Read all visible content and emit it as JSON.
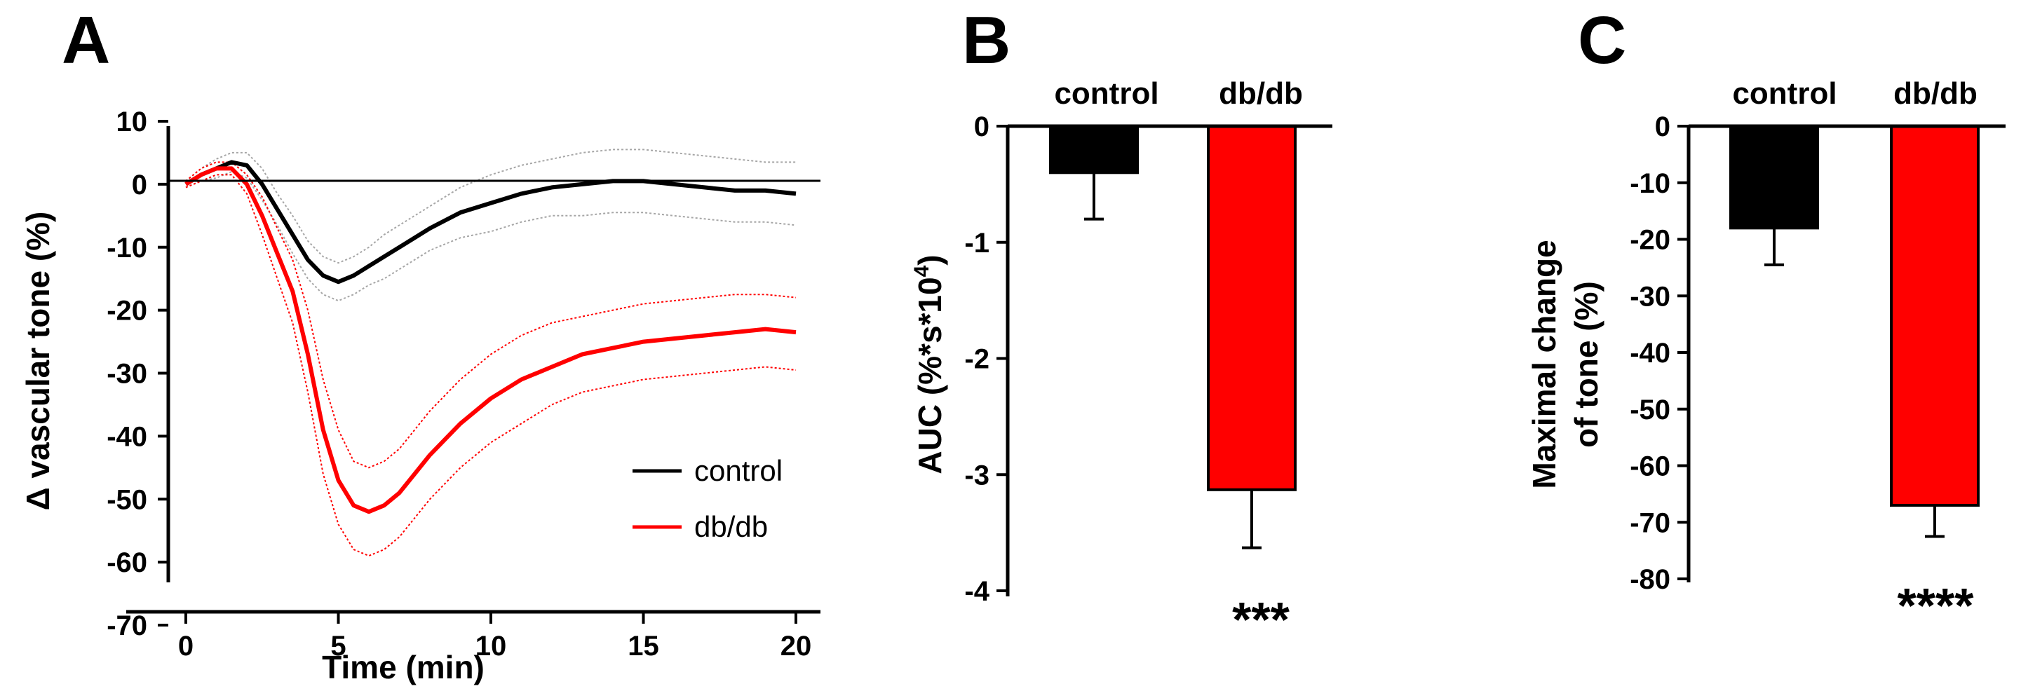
{
  "colors": {
    "control": "#000000",
    "dbdb": "#ff0000",
    "control_band": "#a6a6a6",
    "dbdb_band": "#ff0000"
  },
  "chart_data": [
    {
      "panel": "A",
      "type": "line",
      "title": "",
      "xlabel": "Time (min)",
      "ylabel": "Δ vascular tone (%)",
      "xlim": [
        -1,
        21
      ],
      "ylim": [
        -70,
        10
      ],
      "xticks": [
        0,
        5,
        10,
        15,
        20
      ],
      "yticks": [
        10,
        0,
        -10,
        -20,
        -30,
        -40,
        -50,
        -60,
        -70
      ],
      "x": [
        0,
        0.5,
        1,
        1.5,
        2,
        2.5,
        3,
        3.5,
        4,
        4.5,
        5,
        5.5,
        6,
        6.5,
        7,
        7.5,
        8,
        9,
        10,
        11,
        12,
        13,
        14,
        15,
        16,
        17,
        18,
        19,
        20
      ],
      "series": [
        {
          "name": "control",
          "mean": [
            0,
            1.5,
            2.5,
            3.5,
            3,
            0,
            -4,
            -8,
            -12,
            -14.5,
            -15.5,
            -14.5,
            -13,
            -11.5,
            -10,
            -8.5,
            -7,
            -4.5,
            -3,
            -1.5,
            -0.5,
            0,
            0.5,
            0.5,
            0,
            -0.5,
            -1,
            -1,
            -1.5
          ],
          "upper": [
            0.5,
            2.5,
            4,
            5,
            5,
            2.5,
            -1.5,
            -5,
            -9,
            -11.5,
            -12.5,
            -11.5,
            -10,
            -8,
            -6.5,
            -5,
            -3.5,
            -0.5,
            1.5,
            3,
            4,
            5,
            5.5,
            5.5,
            5,
            4.5,
            4,
            3.5,
            3.5
          ],
          "lower": [
            -0.5,
            0.5,
            1,
            2,
            1,
            -2.5,
            -6.5,
            -11,
            -15,
            -17.5,
            -18.5,
            -17.5,
            -16,
            -15,
            -13.5,
            -12,
            -10.5,
            -8.5,
            -7.5,
            -6,
            -5,
            -5,
            -4.5,
            -4.5,
            -5,
            -5.5,
            -6,
            -6,
            -6.5
          ]
        },
        {
          "name": "db/db",
          "mean": [
            0,
            1.5,
            2.5,
            2.5,
            0,
            -5,
            -11,
            -17,
            -27,
            -39,
            -47,
            -51,
            -52,
            -51,
            -49,
            -46,
            -43,
            -38,
            -34,
            -31,
            -29,
            -27,
            -26,
            -25,
            -24.5,
            -24,
            -23.5,
            -23,
            -23.5
          ],
          "upper": [
            0.5,
            2.5,
            3.5,
            3.5,
            1.5,
            -2,
            -7,
            -12,
            -20,
            -31,
            -39,
            -44,
            -45,
            -44,
            -42,
            -39,
            -36,
            -31,
            -27,
            -24,
            -22,
            -21,
            -20,
            -19,
            -18.5,
            -18,
            -17.5,
            -17.5,
            -18
          ],
          "lower": [
            -0.5,
            0.5,
            1.5,
            1.5,
            -1.5,
            -8,
            -15,
            -22,
            -33,
            -46,
            -54,
            -58,
            -59,
            -58,
            -56,
            -53,
            -50,
            -45,
            -41,
            -38,
            -35,
            -33,
            -32,
            -31,
            -30.5,
            -30,
            -29.5,
            -29,
            -29.5
          ]
        }
      ],
      "legend": [
        "control",
        "db/db"
      ],
      "legend_position": "lower-right"
    },
    {
      "panel": "B",
      "type": "bar",
      "categories": [
        "control",
        "db/db"
      ],
      "values": [
        -0.4,
        -3.13
      ],
      "errors": [
        0.4,
        0.5
      ],
      "ylabel": "AUC (%*s*10",
      "ylabel_sup": "4",
      "ylabel_end": ")",
      "ylim": [
        -4,
        0
      ],
      "yticks": [
        0,
        -1,
        -2,
        -3,
        -4
      ],
      "significance": "***"
    },
    {
      "panel": "C",
      "type": "bar",
      "categories": [
        "control",
        "db/db"
      ],
      "values": [
        -18,
        -67
      ],
      "errors": [
        6.5,
        5.5
      ],
      "ylabel_line1": "Maximal change",
      "ylabel_line2": "of tone  (%)",
      "ylim": [
        -80,
        0
      ],
      "yticks": [
        0,
        -10,
        -20,
        -30,
        -40,
        -50,
        -60,
        -70,
        -80
      ],
      "significance": "****"
    }
  ],
  "panel_labels": [
    "A",
    "B",
    "C"
  ]
}
